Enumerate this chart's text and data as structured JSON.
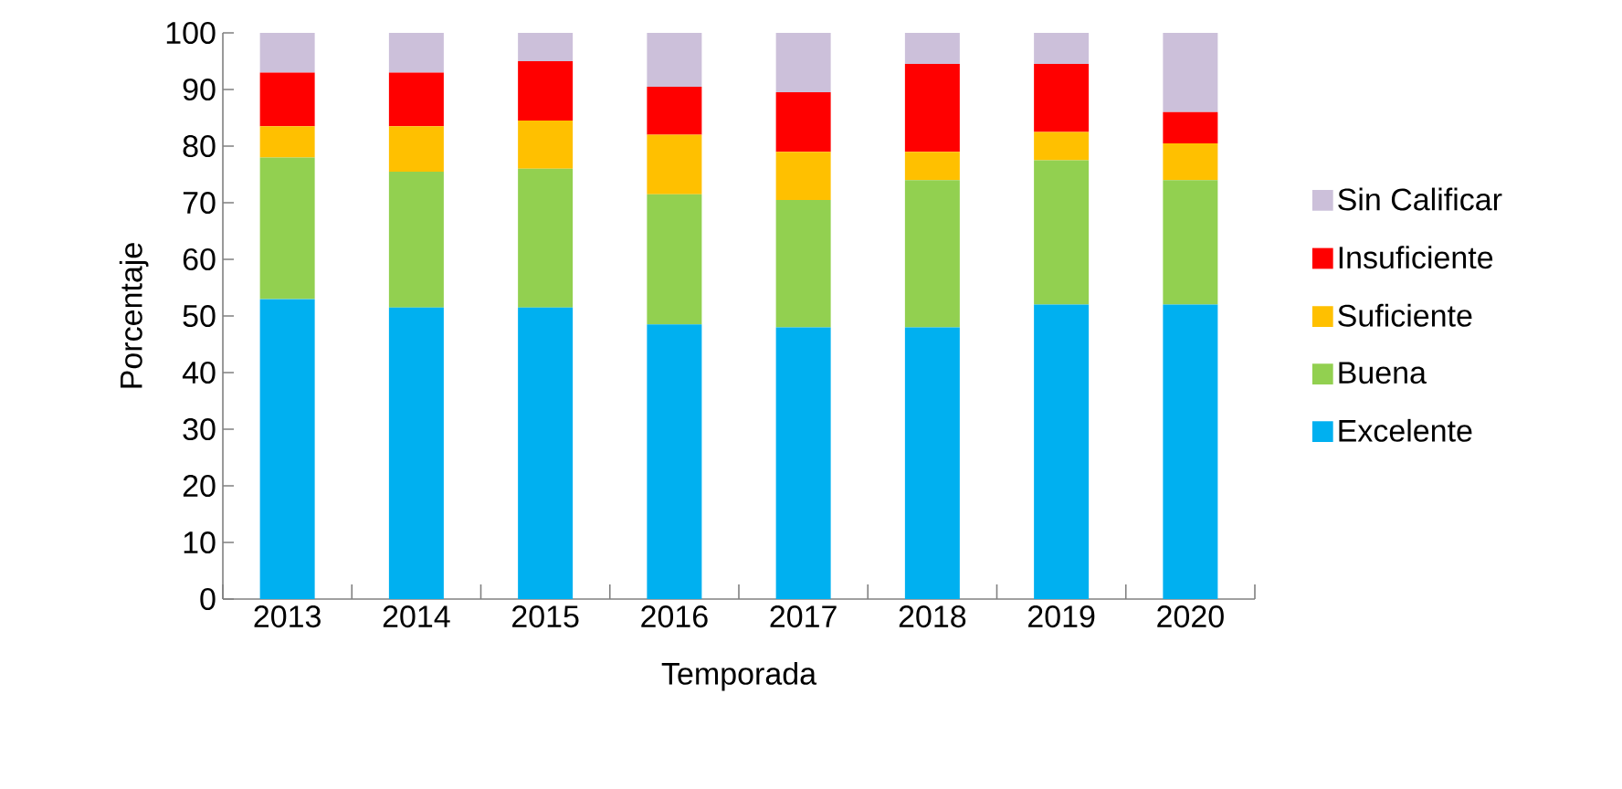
{
  "chart_data": {
    "type": "bar",
    "stacked": true,
    "xlabel": "Temporada",
    "ylabel": "Porcentaje",
    "categories": [
      "2013",
      "2014",
      "2015",
      "2016",
      "2017",
      "2018",
      "2019",
      "2020"
    ],
    "series": [
      {
        "name": "Excelente",
        "color": "#00b0f0",
        "values": [
          53,
          51.5,
          51.5,
          48.5,
          48,
          48,
          52,
          52
        ]
      },
      {
        "name": "Buena",
        "color": "#92d050",
        "values": [
          25,
          24,
          24.5,
          23,
          22.5,
          26,
          25.5,
          22
        ]
      },
      {
        "name": "Suficiente",
        "color": "#ffc000",
        "values": [
          5.5,
          8,
          8.5,
          10.5,
          8.5,
          5,
          5,
          6.5
        ]
      },
      {
        "name": "Insuficiente",
        "color": "#ff0000",
        "values": [
          9.5,
          9.5,
          10.5,
          8.5,
          10.5,
          15.5,
          12,
          5.5
        ]
      },
      {
        "name": "Sin Calificar",
        "color": "#ccc0da",
        "values": [
          7,
          7,
          5,
          9.5,
          10.5,
          5.5,
          5.5,
          14
        ]
      }
    ],
    "ylim": [
      0,
      100
    ],
    "yticks": [
      0,
      10,
      20,
      30,
      40,
      50,
      60,
      70,
      80,
      90,
      100
    ],
    "legend": "right",
    "grid": false
  }
}
